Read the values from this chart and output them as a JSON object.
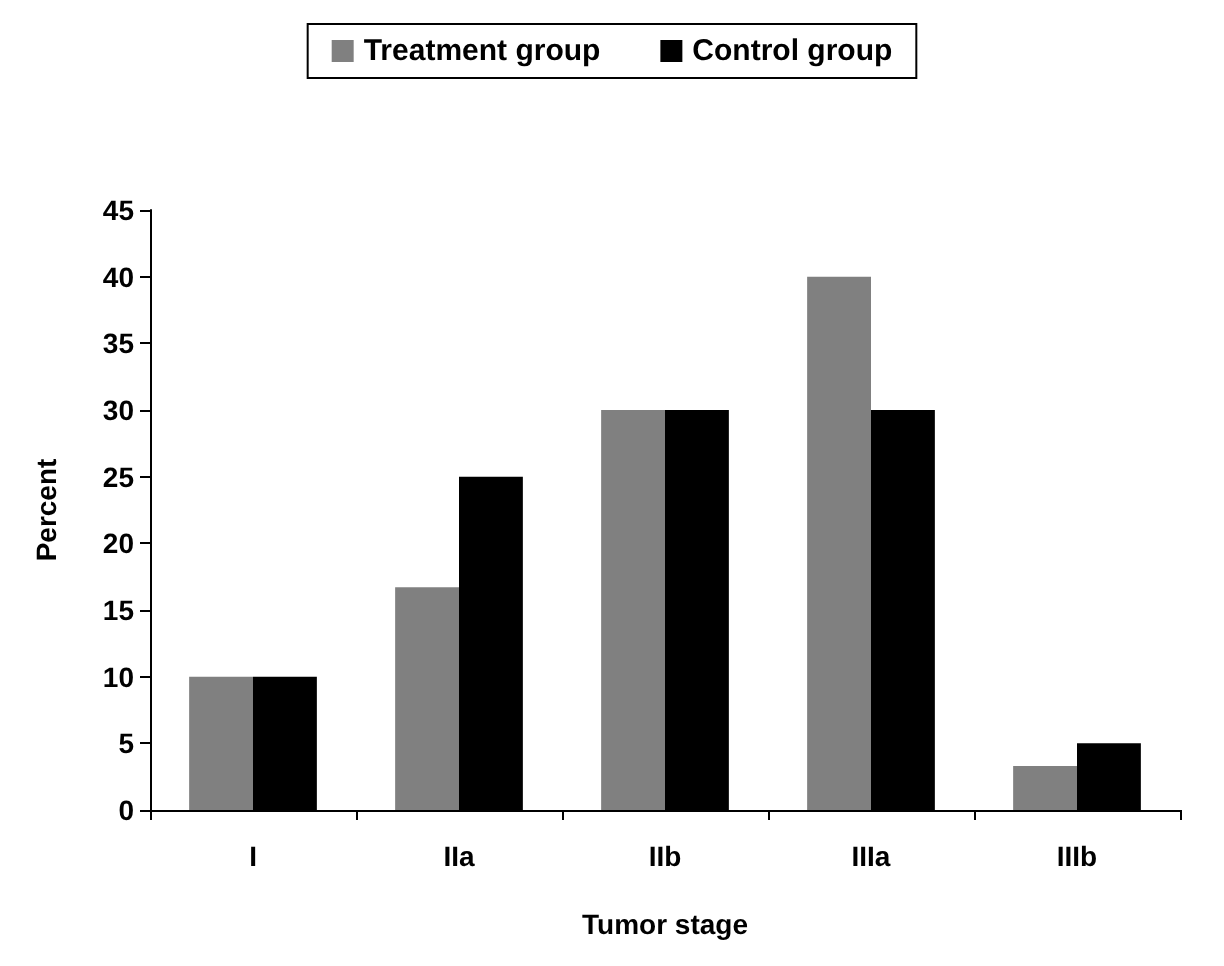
{
  "chart_data": {
    "type": "bar",
    "xlabel": "Tumor stage",
    "ylabel": "Percent",
    "categories": [
      "I",
      "IIa",
      "IIb",
      "IIIa",
      "IIIb"
    ],
    "series": [
      {
        "name": "Treatment group",
        "color": "#808080",
        "values": [
          10,
          16.7,
          30,
          40,
          3.3
        ]
      },
      {
        "name": "Control group",
        "color": "#000000",
        "values": [
          10,
          25,
          30,
          30,
          5
        ]
      }
    ],
    "ylim": [
      0,
      45
    ],
    "yticks": [
      0,
      5,
      10,
      15,
      20,
      25,
      30,
      35,
      40,
      45
    ],
    "grid": false,
    "legend": "top"
  }
}
